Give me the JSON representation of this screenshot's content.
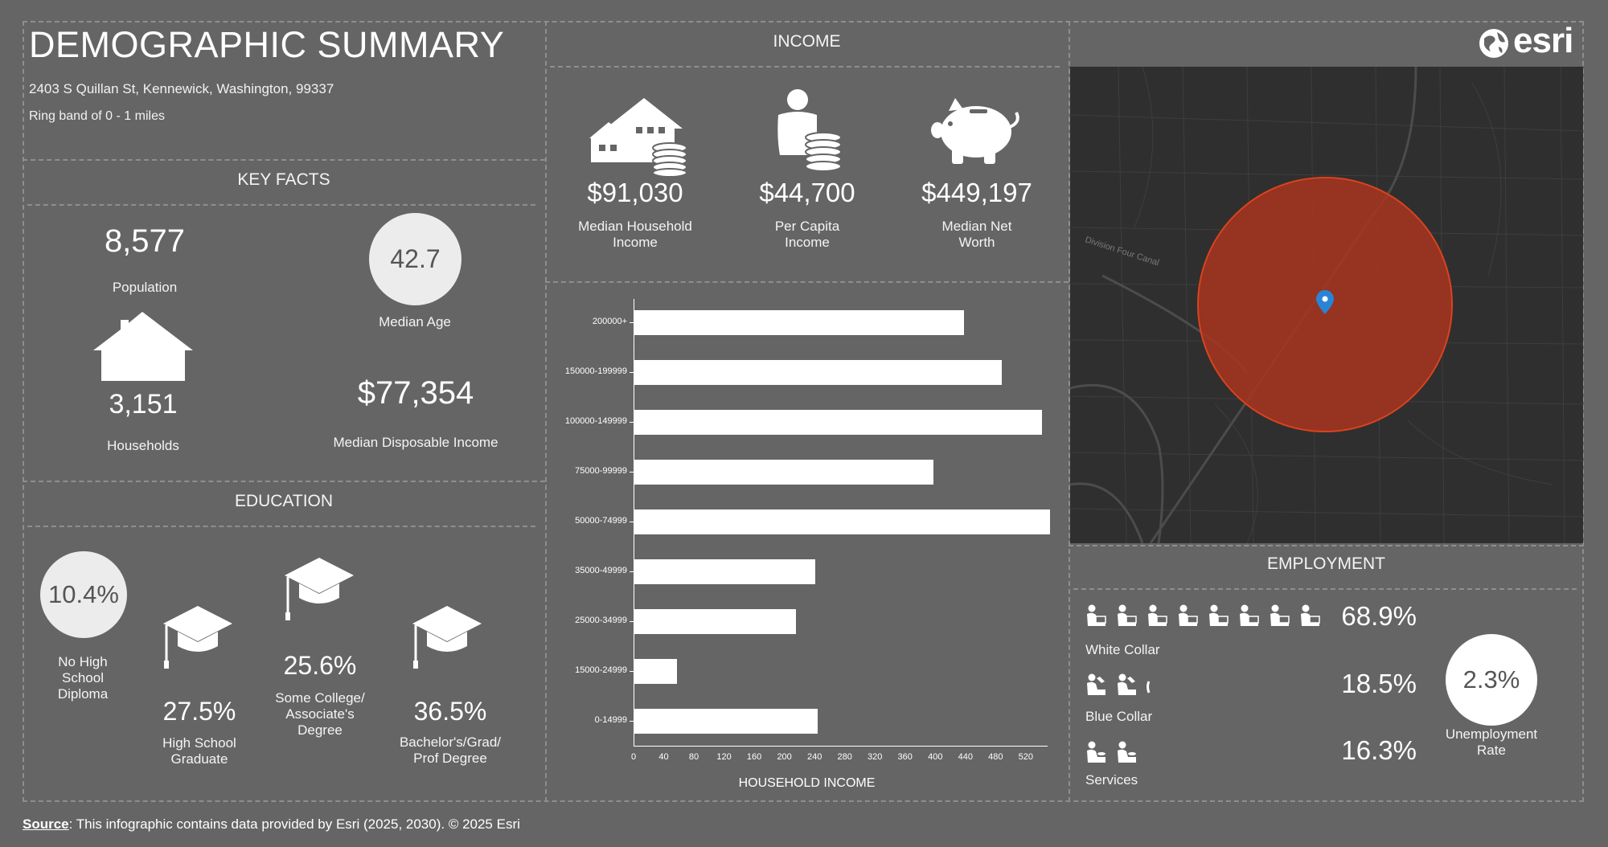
{
  "header": {
    "title": "DEMOGRAPHIC SUMMARY",
    "address": "2403 S Quillan St, Kennewick, Washington, 99337",
    "ring": "Ring band of 0 - 1 miles"
  },
  "key_facts": {
    "section_title": "KEY FACTS",
    "population_value": "8,577",
    "population_label": "Population",
    "median_age_value": "42.7",
    "median_age_label": "Median Age",
    "households_value": "3,151",
    "households_label": "Households",
    "disposable_income_value": "$77,354",
    "disposable_income_label": "Median Disposable Income"
  },
  "education": {
    "section_title": "EDUCATION",
    "items": [
      {
        "value": "10.4%",
        "label": "No High School Diploma"
      },
      {
        "value": "27.5%",
        "label": "High School Graduate"
      },
      {
        "value": "25.6%",
        "label": "Some College/ Associate's Degree"
      },
      {
        "value": "36.5%",
        "label": "Bachelor's/Grad/ Prof Degree"
      }
    ]
  },
  "income": {
    "section_title": "INCOME",
    "items": [
      {
        "value": "$91,030",
        "label": "Median Household Income",
        "icon": "house-coins-icon"
      },
      {
        "value": "$44,700",
        "label": "Per Capita Income",
        "icon": "person-coins-icon"
      },
      {
        "value": "$449,197",
        "label": "Median Net Worth",
        "icon": "piggy-bank-icon"
      }
    ]
  },
  "chart_data": {
    "type": "bar",
    "orientation": "horizontal",
    "categories": [
      "200000+",
      "150000-199999",
      "100000-149999",
      "75000-99999",
      "50000-74999",
      "35000-49999",
      "25000-34999",
      "15000-24999",
      "0-14999"
    ],
    "values": [
      437,
      487,
      540,
      396,
      551,
      240,
      214,
      56,
      243
    ],
    "xlabel": "HOUSEHOLD INCOME",
    "xticks": [
      "0",
      "40",
      "80",
      "120",
      "160",
      "200",
      "240",
      "280",
      "320",
      "360",
      "400",
      "440",
      "480",
      "520"
    ],
    "xlim": [
      0,
      550
    ],
    "grid": false,
    "legend": "none"
  },
  "employment": {
    "section_title": "EMPLOYMENT",
    "white_collar_value": "68.9%",
    "white_collar_label": "White Collar",
    "blue_collar_value": "18.5%",
    "blue_collar_label": "Blue Collar",
    "services_value": "16.3%",
    "services_label": "Services",
    "unemployment_value": "2.3%",
    "unemployment_label": "Unemployment Rate"
  },
  "map": {
    "road_label": "Division Four Canal",
    "brand": "esri",
    "ring_color": "#a8341f",
    "pin_color": "#2a84d6"
  },
  "footer": {
    "source_label": "Source",
    "source_text": ": This infographic contains data provided by Esri (2025, 2030).  © 2025 Esri"
  }
}
